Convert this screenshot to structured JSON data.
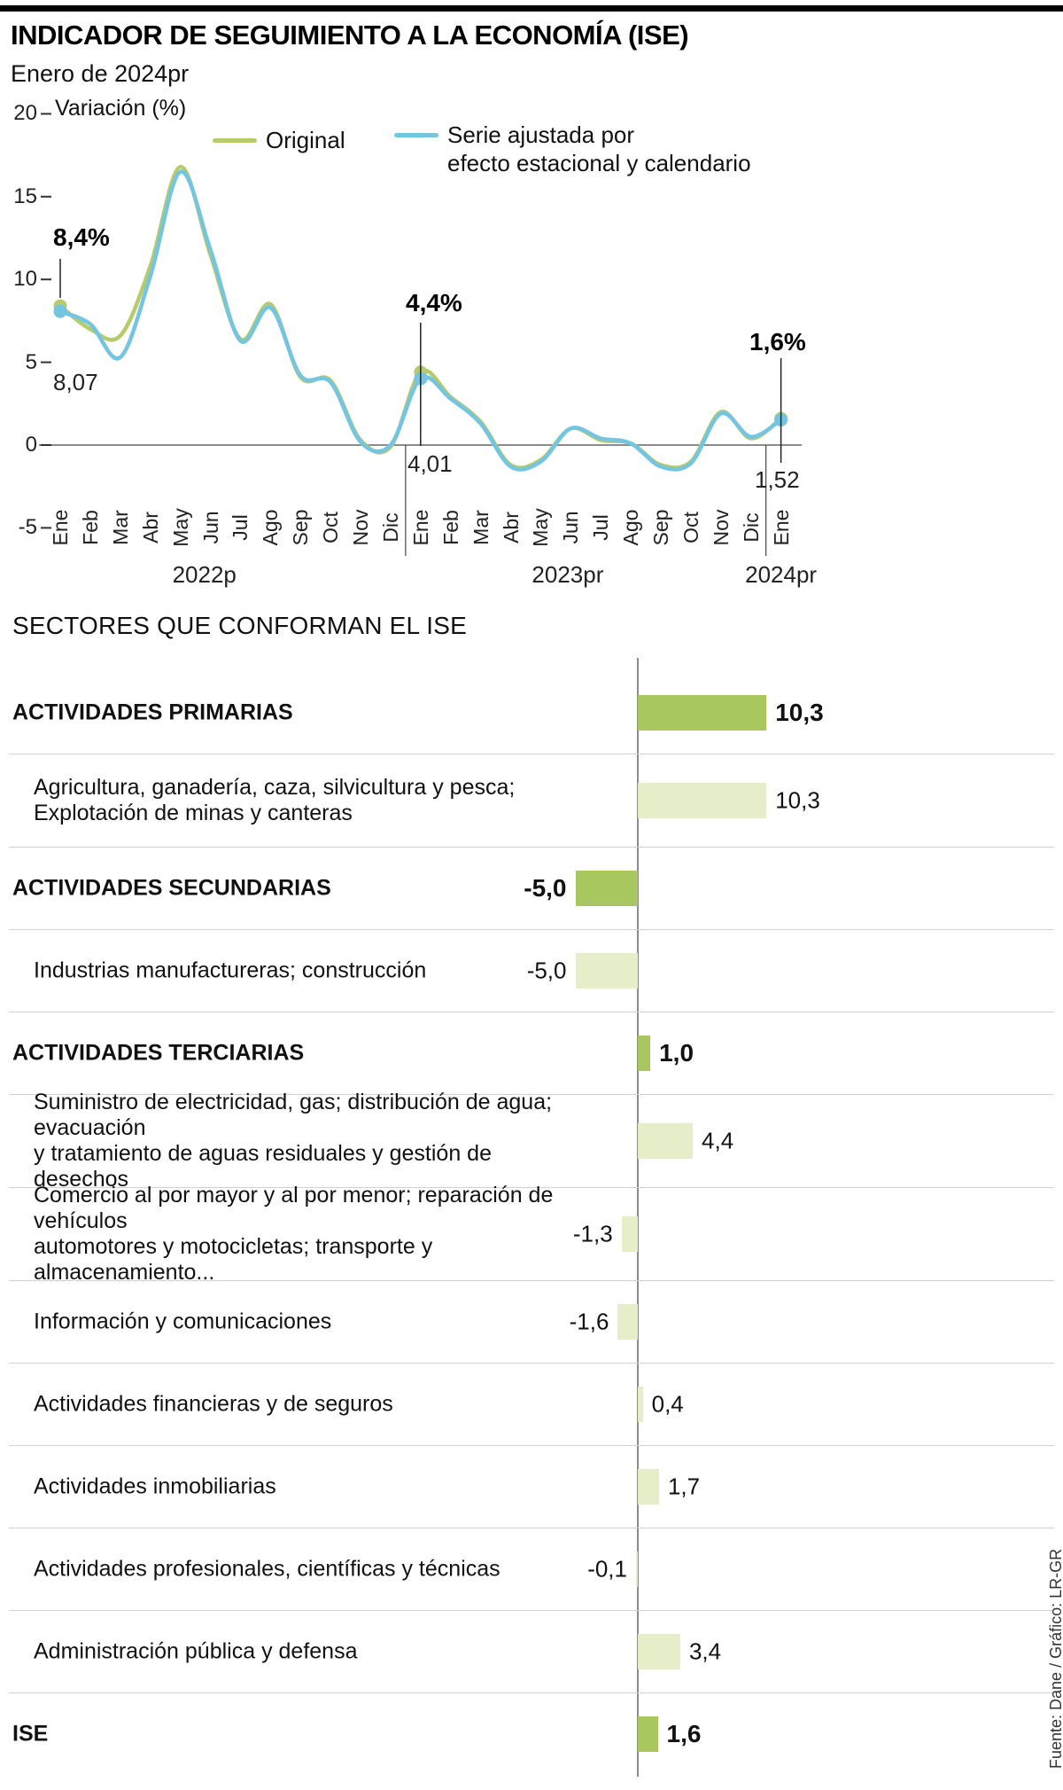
{
  "header": {
    "title": "INDICADOR DE SEGUIMIENTO A LA ECONOMÍA (ISE)",
    "subtitle": "Enero de 2024pr"
  },
  "legend": {
    "original": "Original",
    "adjusted_line1": "Serie ajustada por",
    "adjusted_line2": "efecto estacional y calendario"
  },
  "colors": {
    "original_line": "#b6cb6b",
    "adjusted_line": "#74c5e2",
    "bar_dark": "#a9c75f",
    "bar_light": "#e6eec9",
    "axis_gray": "#8c8c8c",
    "separator": "#444444"
  },
  "chart_data": [
    {
      "type": "line",
      "title": "Variación (%)",
      "x": [
        "Ene",
        "Feb",
        "Mar",
        "Abr",
        "May",
        "Jun",
        "Jul",
        "Ago",
        "Sep",
        "Oct",
        "Nov",
        "Dic",
        "Ene",
        "Feb",
        "Mar",
        "Abr",
        "May",
        "Jun",
        "Jul",
        "Ago",
        "Sep",
        "Oct",
        "Nov",
        "Dic",
        "Ene"
      ],
      "year_groups": [
        {
          "label": "2022p",
          "center_index": 4.8
        },
        {
          "label": "2023pr",
          "center_index": 16.9
        },
        {
          "label": "2024pr",
          "center_index": 24
        }
      ],
      "year_separators": [
        11.5,
        23.5
      ],
      "ylim": [
        -5,
        20
      ],
      "yticks": [
        20,
        15,
        10,
        5,
        0,
        -5
      ],
      "series": [
        {
          "name": "Original",
          "values": [
            8.4,
            7.0,
            6.6,
            10.8,
            16.8,
            11.5,
            6.4,
            8.5,
            4.1,
            3.9,
            0.3,
            -0.1,
            4.4,
            2.9,
            1.4,
            -1.2,
            -0.9,
            1.0,
            0.3,
            0.1,
            -1.2,
            -1.0,
            2.0,
            0.4,
            1.6
          ]
        },
        {
          "name": "Serie ajustada por efecto estacional y calendario",
          "values": [
            8.07,
            7.3,
            5.3,
            10.2,
            16.5,
            11.8,
            6.3,
            8.3,
            4.2,
            3.8,
            0.2,
            0.0,
            4.01,
            2.8,
            1.3,
            -1.3,
            -1.0,
            1.0,
            0.4,
            0.1,
            -1.3,
            -1.1,
            1.9,
            0.5,
            1.52
          ]
        }
      ],
      "annotations": [
        {
          "x_index": 0,
          "top_label": "8,4%",
          "bottom_label": "8,07"
        },
        {
          "x_index": 12,
          "top_label": "4,4%",
          "bottom_label": "4,01"
        },
        {
          "x_index": 24,
          "top_label": "1,6%",
          "bottom_label": "1,52"
        }
      ]
    },
    {
      "type": "bar",
      "title": "SECTORES QUE CONFORMAN EL ISE",
      "rows": [
        {
          "label": "ACTIVIDADES PRIMARIAS",
          "value": 10.3,
          "display": "10,3",
          "bold": true
        },
        {
          "label": "Agricultura, ganadería, caza, silvicultura y pesca;\nExplotación de minas y canteras",
          "value": 10.3,
          "display": "10,3",
          "bold": false
        },
        {
          "label": "ACTIVIDADES SECUNDARIAS",
          "value": -5.0,
          "display": "-5,0",
          "bold": true
        },
        {
          "label": "Industrias manufactureras; construcción",
          "value": -5.0,
          "display": "-5,0",
          "bold": false
        },
        {
          "label": "ACTIVIDADES TERCIARIAS",
          "value": 1.0,
          "display": "1,0",
          "bold": true
        },
        {
          "label": "Suministro de electricidad, gas; distribución de agua; evacuación\ny tratamiento de aguas residuales y gestión de desechos",
          "value": 4.4,
          "display": "4,4",
          "bold": false
        },
        {
          "label": "Comercio al por mayor y al por menor; reparación de vehículos\nautomotores y motocicletas; transporte y almacenamiento...",
          "value": -1.3,
          "display": "-1,3",
          "bold": false
        },
        {
          "label": "Información y comunicaciones",
          "value": -1.6,
          "display": "-1,6",
          "bold": false
        },
        {
          "label": "Actividades financieras y de seguros",
          "value": 0.4,
          "display": "0,4",
          "bold": false
        },
        {
          "label": "Actividades inmobiliarias",
          "value": 1.7,
          "display": "1,7",
          "bold": false
        },
        {
          "label": "Actividades profesionales, científicas y técnicas",
          "value": -0.1,
          "display": "-0,1",
          "bold": false
        },
        {
          "label": "Administración pública y defensa",
          "value": 3.4,
          "display": "3,4",
          "bold": false
        },
        {
          "label": "ISE",
          "value": 1.6,
          "display": "1,6",
          "bold": true
        }
      ]
    }
  ],
  "source": "Fuente: Dane / Gráfico: LR-GR"
}
